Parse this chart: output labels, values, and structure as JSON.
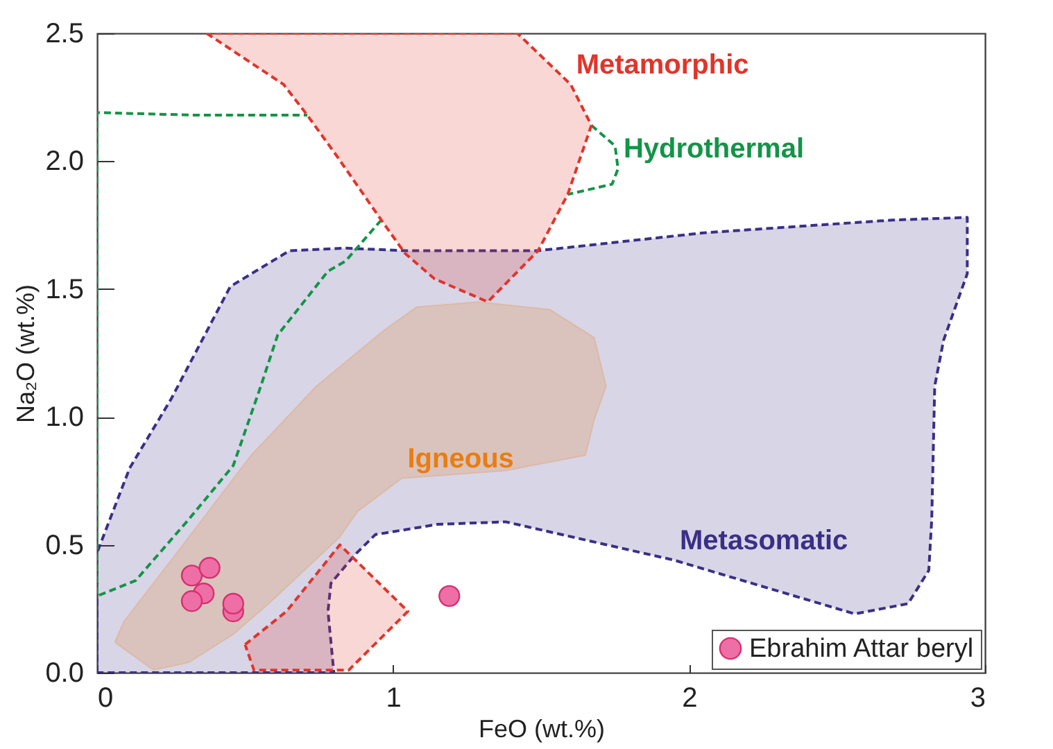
{
  "chart_data": {
    "type": "scatter",
    "xlabel": "FeO (wt.%)",
    "ylabel": "Na₂O (wt.%)",
    "xlim": [
      0,
      3
    ],
    "ylim": [
      0,
      2.5
    ],
    "xticks": [
      0,
      1,
      2,
      3
    ],
    "yticks": [
      {
        "value": 0,
        "label": "0.0"
      },
      {
        "value": 0.5,
        "label": "0.5"
      },
      {
        "value": 1,
        "label": "1.0"
      },
      {
        "value": 1.5,
        "label": "1.5"
      },
      {
        "value": 2,
        "label": "2.0"
      },
      {
        "value": 2.5,
        "label": "2.5"
      }
    ],
    "grid": false,
    "legend": "bottom right",
    "annotations": [
      {
        "text": "Metasomatic",
        "x": 1.95,
        "y": 0.44
      },
      {
        "text": "Igneous",
        "x": 1.03,
        "y": 0.76
      },
      {
        "text": "Hydrothermal",
        "x": 1.76,
        "y": 1.97
      },
      {
        "text": "Metamorphic",
        "x": 1.6,
        "y": 2.3
      }
    ],
    "series": [
      {
        "type": "area",
        "color": "#3a2f86",
        "line_style": "dashed",
        "x": [
          0,
          0,
          0.11,
          0.25,
          0.45,
          0.65,
          0.84,
          1.04,
          1.49,
          2.05,
          2.69,
          2.94,
          2.94,
          2.86,
          2.83,
          2.82,
          2.81,
          2.74,
          2.56,
          1.95,
          1.38,
          1.15,
          0.94,
          0.87,
          0.79,
          0.78,
          0.8,
          0
        ],
        "values": [
          0,
          0.47,
          0.8,
          1.07,
          1.51,
          1.65,
          1.66,
          1.65,
          1.65,
          1.72,
          1.77,
          1.78,
          1.56,
          1.3,
          1.12,
          0.6,
          0.4,
          0.27,
          0.23,
          0.44,
          0.59,
          0.58,
          0.54,
          0.46,
          0.35,
          0.24,
          0,
          0
        ]
      },
      {
        "type": "area",
        "color": "#e87d12",
        "line_style": "solid",
        "x": [
          0.06,
          0.09,
          0.27,
          0.52,
          0.74,
          0.97,
          1.08,
          1.29,
          1.53,
          1.68,
          1.72,
          1.68,
          1.65,
          1.38,
          1.03,
          0.88,
          0.82,
          0.58,
          0.46,
          0.31,
          0.19,
          0.07,
          0.06
        ],
        "values": [
          0.12,
          0.2,
          0.47,
          0.85,
          1.12,
          1.34,
          1.43,
          1.45,
          1.42,
          1.31,
          1.12,
          0.99,
          0.85,
          0.79,
          0.76,
          0.63,
          0.53,
          0.27,
          0.15,
          0.04,
          0.01,
          0.11,
          0.12
        ]
      },
      {
        "type": "line",
        "color": "#139447",
        "line_style": "dashed",
        "x": [
          1.67,
          1.75,
          1.76,
          1.74,
          1.59,
          null,
          0.96,
          0.84,
          0.78,
          0.61,
          0.55,
          0.46,
          0.31,
          0.13,
          0,
          0,
          0.33,
          0.71
        ],
        "values": [
          2.14,
          2.06,
          1.97,
          1.91,
          1.87,
          null,
          1.77,
          1.61,
          1.57,
          1.32,
          1.11,
          0.81,
          0.6,
          0.36,
          0.3,
          2.19,
          2.18,
          2.18
        ]
      },
      {
        "type": "area",
        "color": "#e0352b",
        "line_style": "dashed",
        "x": [
          0.37,
          0.63,
          0.71,
          0.81,
          0.96,
          1.04,
          1.14,
          1.32,
          1.49,
          1.59,
          1.67,
          1.6,
          1.42,
          0.37,
          null,
          0.5,
          0.64,
          0.82,
          1.05,
          0.85,
          0.53,
          0.5
        ],
        "values": [
          2.5,
          2.3,
          2.18,
          2.02,
          1.77,
          1.64,
          1.54,
          1.45,
          1.65,
          1.87,
          2.14,
          2.3,
          2.5,
          2.5,
          null,
          0.11,
          0.24,
          0.5,
          0.24,
          0.01,
          0.01,
          0.11
        ]
      },
      {
        "name": "Ebrahim Attar beryl",
        "color": "#ee6fa5",
        "marker": "circle",
        "x": [
          0.32,
          0.38,
          0.36,
          0.32,
          0.46,
          0.46,
          1.19
        ],
        "values": [
          0.38,
          0.41,
          0.31,
          0.28,
          0.24,
          0.27,
          0.3
        ]
      }
    ]
  }
}
